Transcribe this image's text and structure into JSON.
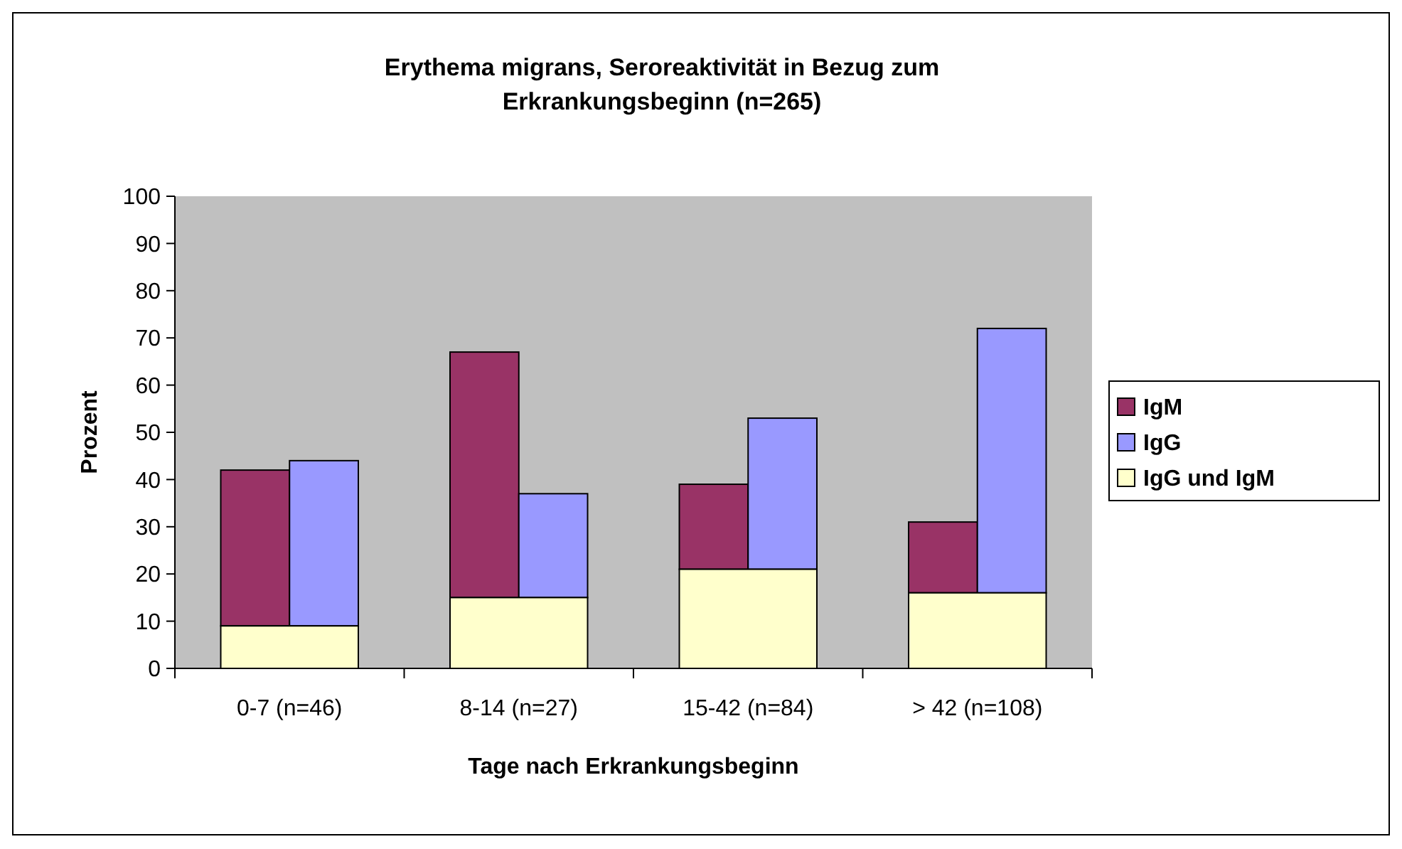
{
  "chart_data": {
    "type": "bar",
    "title": "Erythema migrans, Seroreaktivität in Bezug zum\nErkrankungsbeginn (n=265)",
    "xlabel": "Tage nach Erkrankungsbeginn",
    "ylabel": "Prozent",
    "categories": [
      "0-7 (n=46)",
      "8-14 (n=27)",
      "15-42 (n=84)",
      "> 42 (n=108)"
    ],
    "series": [
      {
        "name": "IgM",
        "color": "#993366",
        "base": [
          9,
          15,
          21,
          16
        ],
        "values": [
          33,
          52,
          18,
          15
        ]
      },
      {
        "name": "IgG",
        "color": "#9999ff",
        "base": [
          9,
          15,
          21,
          16
        ],
        "values": [
          35,
          22,
          32,
          56
        ]
      },
      {
        "name": "IgG und IgM",
        "color": "#ffffcc",
        "values": [
          9,
          15,
          21,
          16
        ]
      }
    ],
    "ylim": [
      0,
      100
    ],
    "yticks": [
      0,
      10,
      20,
      30,
      40,
      50,
      60,
      70,
      80,
      90,
      100
    ],
    "grid": false,
    "legend": "right"
  }
}
